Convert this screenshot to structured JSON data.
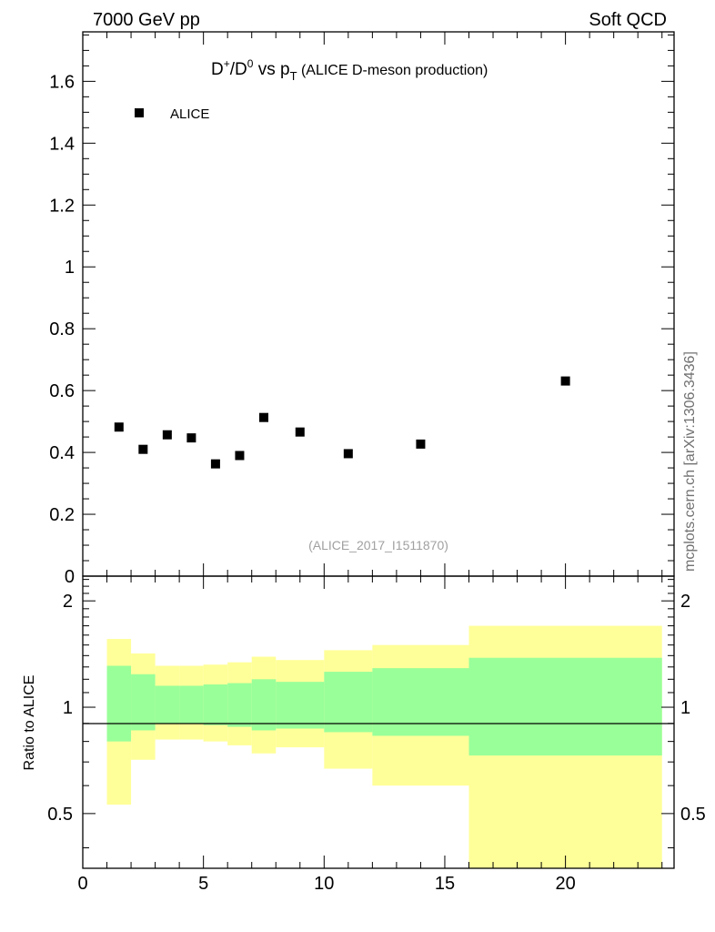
{
  "header": {
    "left": "7000 GeV pp",
    "right": "Soft QCD"
  },
  "title": {
    "main": "D",
    "sup1": "+",
    "slash": "/D",
    "sup2": "0",
    "vs": " vs p",
    "sub": "T",
    "rest": " (ALICE D-meson production)"
  },
  "watermark": "(ALICE_2017_I1511870)",
  "side_label": "mcplots.cern.ch [arXiv:1306.3436]",
  "ratio_ylabel": "Ratio to ALICE",
  "colors": {
    "band_inner": "#99ff99",
    "band_outer": "#ffff99",
    "marker": "#000000"
  },
  "chart_data": [
    {
      "type": "scatter",
      "legend": [
        "ALICE"
      ],
      "legend_position": "top-left",
      "xlim": [
        0,
        24.5
      ],
      "ylim": [
        0,
        1.76
      ],
      "y_ticks": [
        0,
        0.2,
        0.4,
        0.6,
        0.8,
        1,
        1.2,
        1.4,
        1.6
      ],
      "y_tick_labels": [
        "0",
        "0.2",
        "0.4",
        "0.6",
        "0.8",
        "1",
        "1.2",
        "1.4",
        "1.6"
      ],
      "series": [
        {
          "name": "ALICE",
          "x": [
            1.5,
            2.5,
            3.5,
            4.5,
            5.5,
            6.5,
            7.5,
            9,
            11,
            14,
            20
          ],
          "y": [
            0.482,
            0.41,
            0.457,
            0.447,
            0.363,
            0.39,
            0.513,
            0.466,
            0.396,
            0.427,
            0.631
          ]
        }
      ]
    },
    {
      "type": "area",
      "ylabel": "Ratio to ALICE",
      "xlim": [
        0,
        24.5
      ],
      "ylim": [
        0.35,
        2.35
      ],
      "y_scale": "log",
      "y_ticks": [
        0.5,
        1,
        2
      ],
      "y_tick_labels": [
        "0.5",
        "1",
        "2"
      ],
      "x_ticks": [
        0,
        5,
        10,
        15,
        20
      ],
      "x_tick_labels": [
        "0",
        "5",
        "10",
        "15",
        "20"
      ],
      "reference_line": 1,
      "bins": [
        [
          1,
          2
        ],
        [
          2,
          3
        ],
        [
          3,
          4
        ],
        [
          4,
          5
        ],
        [
          5,
          6
        ],
        [
          6,
          7
        ],
        [
          7,
          8
        ],
        [
          8,
          10
        ],
        [
          10,
          12
        ],
        [
          12,
          16
        ],
        [
          16,
          24
        ]
      ],
      "series": [
        {
          "band": "inner",
          "upper": [
            1.31,
            1.24,
            1.15,
            1.15,
            1.16,
            1.17,
            1.2,
            1.18,
            1.26,
            1.29,
            1.38
          ],
          "lower": [
            0.8,
            0.86,
            0.9,
            0.9,
            0.89,
            0.88,
            0.86,
            0.87,
            0.85,
            0.83,
            0.73
          ]
        },
        {
          "band": "outer",
          "upper": [
            1.56,
            1.42,
            1.31,
            1.31,
            1.32,
            1.34,
            1.39,
            1.36,
            1.45,
            1.5,
            1.7
          ],
          "lower": [
            0.53,
            0.71,
            0.81,
            0.81,
            0.8,
            0.78,
            0.74,
            0.77,
            0.67,
            0.6,
            0.35
          ]
        }
      ]
    }
  ]
}
